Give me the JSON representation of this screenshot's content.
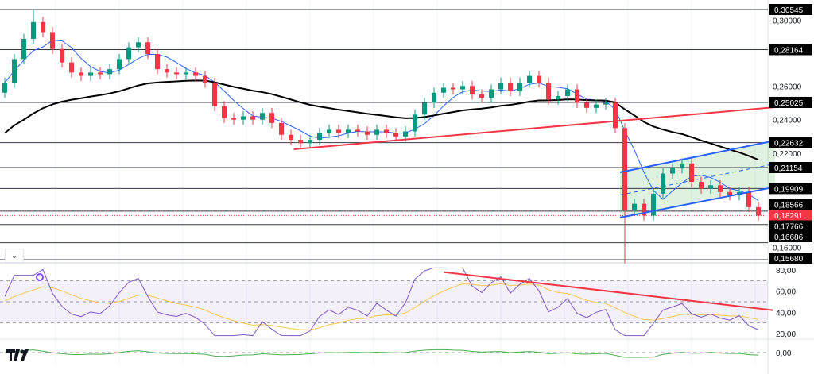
{
  "chart_data": {
    "type": "candlestick",
    "title": "",
    "price_axis_ticks": [
      "0,30000",
      "0,26000",
      "0,24000",
      "0,22000",
      "0,16000"
    ],
    "price_axis_tick_values": [
      0.3,
      0.26,
      0.24,
      0.22,
      0.16
    ],
    "levels": [
      {
        "value": 0.30545,
        "label": "0,30545"
      },
      {
        "value": 0.28164,
        "label": "0,28164"
      },
      {
        "value": 0.25025,
        "label": "0,25025"
      },
      {
        "value": 0.22632,
        "label": "0,22632"
      },
      {
        "value": 0.21154,
        "label": "0,21154"
      },
      {
        "value": 0.19909,
        "label": "0,19909"
      },
      {
        "value": 0.18566,
        "label": "0,18566"
      },
      {
        "value": 0.17766,
        "label": "0,17766"
      },
      {
        "value": 0.16686,
        "label": "0,16686"
      },
      {
        "value": 0.1568,
        "label": "0,15680"
      }
    ],
    "last_price": {
      "value": 0.18291,
      "label": "0,18291"
    },
    "closes": [
      0.262,
      0.276,
      0.288,
      0.298,
      0.292,
      0.282,
      0.274,
      0.268,
      0.266,
      0.268,
      0.267,
      0.27,
      0.276,
      0.283,
      0.286,
      0.279,
      0.27,
      0.268,
      0.267,
      0.268,
      0.266,
      0.262,
      0.248,
      0.241,
      0.24,
      0.242,
      0.24,
      0.244,
      0.238,
      0.231,
      0.228,
      0.226,
      0.228,
      0.232,
      0.234,
      0.232,
      0.234,
      0.233,
      0.231,
      0.234,
      0.232,
      0.23,
      0.233,
      0.243,
      0.25,
      0.256,
      0.259,
      0.258,
      0.26,
      0.255,
      0.253,
      0.258,
      0.262,
      0.257,
      0.262,
      0.266,
      0.262,
      0.252,
      0.254,
      0.258,
      0.25,
      0.247,
      0.249,
      0.25,
      0.235,
      0.186,
      0.19,
      0.183,
      0.196,
      0.208,
      0.211,
      0.214,
      0.203,
      0.199,
      0.201,
      0.197,
      0.195,
      0.197,
      0.188,
      0.183
    ],
    "wick_extremes": {
      "3": 0.3052,
      "65": 0.1545
    },
    "trendlines": [
      {
        "name": "support-trendline",
        "color": "#f23645",
        "from": [
          30.3,
          0.2224
        ],
        "to": [
          80.75,
          0.2474
        ]
      },
      {
        "name": "channel-upper",
        "color": "#2962ff",
        "from": [
          64.5,
          0.2087
        ],
        "to": [
          80.75,
          0.2276
        ]
      },
      {
        "name": "channel-lower",
        "color": "#2962ff",
        "from": [
          64.5,
          0.1818
        ],
        "to": [
          80.75,
          0.2
        ]
      }
    ],
    "rsi": {
      "ticks": [
        "80,00",
        "60,00",
        "40,00",
        "20,00"
      ],
      "tick_values": [
        80,
        60,
        40,
        20
      ],
      "band": [
        30,
        70
      ],
      "trendline": {
        "from": [
          46,
          78
        ],
        "to": [
          80.5,
          42
        ]
      }
    },
    "oscillator": {
      "ticks": [
        "0,00"
      ],
      "tick_values": [
        0
      ]
    },
    "colors": {
      "up": "#089981",
      "down": "#f23645",
      "ma_fast": "#2962ff",
      "ma_slow": "#000000",
      "rsi": "#7e57c2",
      "rsi_ma": "#f7c948",
      "osc": "#4caf50"
    }
  },
  "ui": {
    "collapse_icon": "chevron-down",
    "logo": "TV"
  }
}
